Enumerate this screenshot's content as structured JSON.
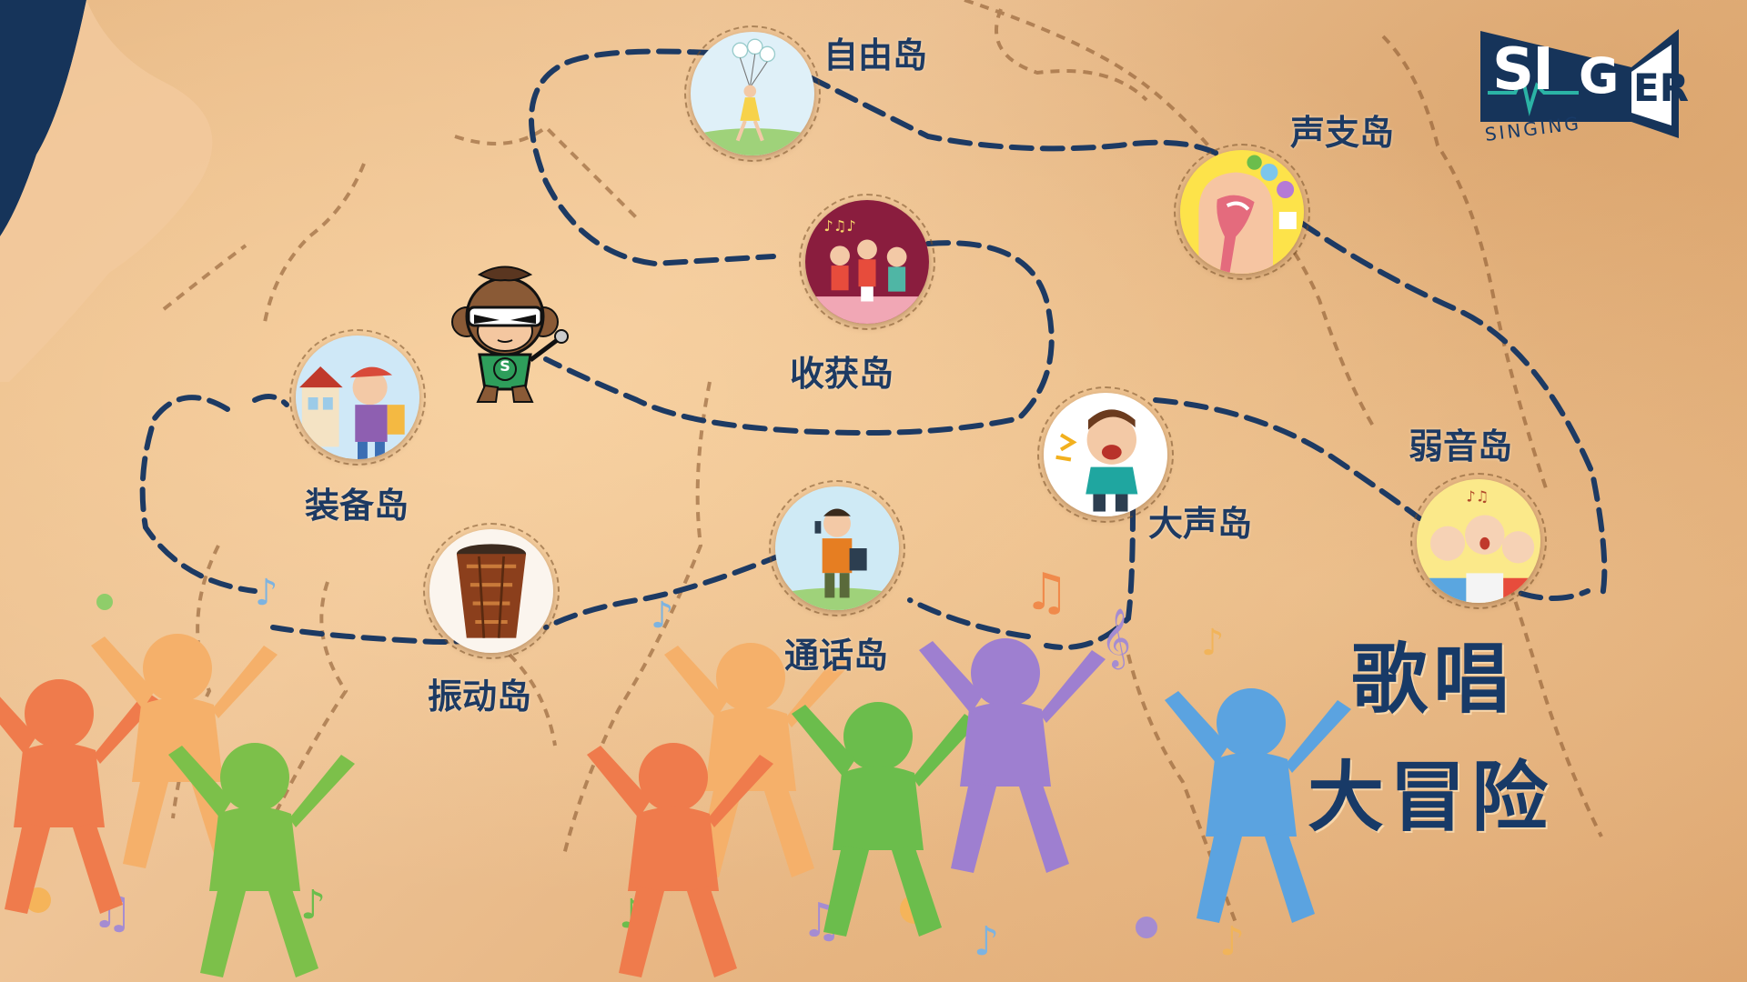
{
  "islands": [
    {
      "id": "freedom",
      "label": "自由岛",
      "icon": "balloon-girl"
    },
    {
      "id": "larynx",
      "label": "声支岛",
      "icon": "vocal-anatomy"
    },
    {
      "id": "harvest",
      "label": "收获岛",
      "icon": "singing-kids-stage"
    },
    {
      "id": "gear",
      "label": "装备岛",
      "icon": "schoolboy-backpack"
    },
    {
      "id": "loud",
      "label": "大声岛",
      "icon": "shouting-boy"
    },
    {
      "id": "soft",
      "label": "弱音岛",
      "icon": "singing-children"
    },
    {
      "id": "vibration",
      "label": "振动岛",
      "icon": "drum"
    },
    {
      "id": "talk",
      "label": "通话岛",
      "icon": "boy-with-phone"
    }
  ],
  "title": {
    "line1": "歌唱",
    "line2": "大冒险"
  },
  "logo": {
    "main_left": "SI",
    "main_mid": "G",
    "main_right": "ER",
    "sub": "SINGING"
  },
  "mascot": {
    "badge": "S"
  },
  "colors": {
    "path": "#1d3a63",
    "trail": "#8c5a30",
    "title": "#183a67"
  }
}
